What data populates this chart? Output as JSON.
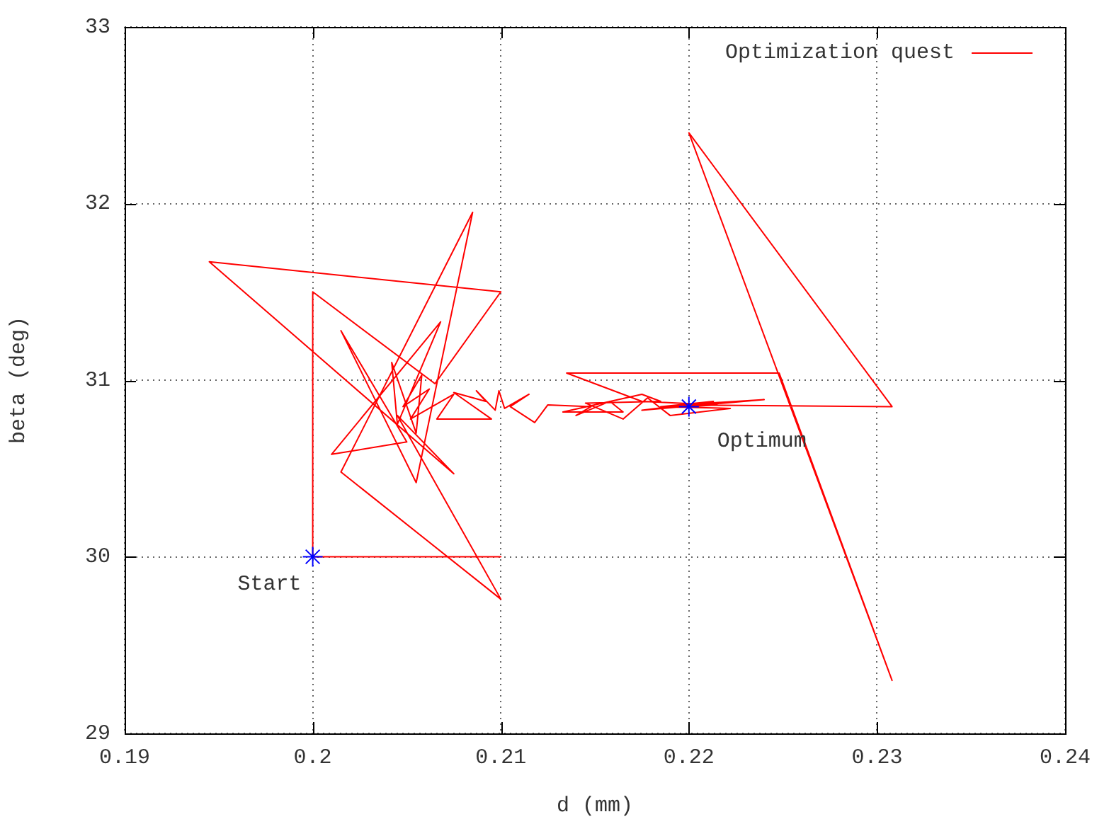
{
  "chart_data": {
    "type": "line",
    "xlabel": "d (mm)",
    "ylabel": "beta (deg)",
    "xlim": [
      0.19,
      0.24
    ],
    "xticks": [
      0.19,
      0.2,
      0.21,
      0.22,
      0.23,
      0.24
    ],
    "ylim": [
      29,
      33
    ],
    "yticks": [
      29,
      30,
      31,
      32,
      33
    ],
    "grid": true,
    "legend": "top right",
    "annotations": [
      {
        "text": "Start",
        "x": 0.2,
        "y": 30
      },
      {
        "text": "Optimum",
        "x": 0.22,
        "y": 30.85
      }
    ],
    "series": [
      {
        "name": "Optimization quest",
        "type": "line",
        "color": "#ff0000",
        "marker": "none",
        "line_style": "solid",
        "x": [
          0.2,
          0.21,
          0.2,
          0.2,
          0.2065,
          0.21,
          0.1945,
          0.2075,
          0.2045,
          0.21,
          0.2015,
          0.2085,
          0.2055,
          0.2035,
          0.2015,
          0.205,
          0.201,
          0.2068,
          0.2045,
          0.2042,
          0.2055,
          0.2058,
          0.2048,
          0.2062,
          0.2052,
          0.2075,
          0.2066,
          0.2095,
          0.2075,
          0.2092,
          0.2087,
          0.2097,
          0.2099,
          0.2102,
          0.2115,
          0.2105,
          0.2118,
          0.2125,
          0.2148,
          0.214,
          0.2158,
          0.2165,
          0.2133,
          0.2175,
          0.2185,
          0.2145,
          0.2165,
          0.2178,
          0.219,
          0.2222,
          0.2185,
          0.2213,
          0.2175,
          0.224,
          0.2195,
          0.2308,
          0.22,
          0.2308,
          0.2248,
          0.2135,
          0.2175,
          0.2215,
          0.22
        ],
        "values": [
          30,
          30,
          30,
          31.5,
          30.98,
          31.5,
          31.67,
          30.47,
          30.8,
          29.76,
          30.48,
          31.95,
          30.42,
          30.85,
          31.28,
          30.65,
          30.58,
          31.33,
          30.75,
          31.1,
          30.7,
          31.03,
          30.85,
          30.95,
          30.78,
          30.92,
          30.78,
          30.78,
          30.93,
          30.88,
          30.94,
          30.83,
          30.94,
          30.84,
          30.92,
          30.85,
          30.76,
          30.86,
          30.85,
          30.8,
          30.88,
          30.82,
          30.82,
          30.92,
          30.88,
          30.87,
          30.78,
          30.9,
          30.8,
          30.84,
          30.85,
          30.88,
          30.83,
          30.89,
          30.86,
          30.85,
          32.4,
          29.3,
          31.04,
          31.04,
          30.88,
          30.86,
          30.85
        ]
      },
      {
        "type": "scatter",
        "color": "#0000ff",
        "marker": "cross",
        "x": [
          0.2,
          0.22
        ],
        "values": [
          30,
          30.85
        ]
      }
    ]
  }
}
